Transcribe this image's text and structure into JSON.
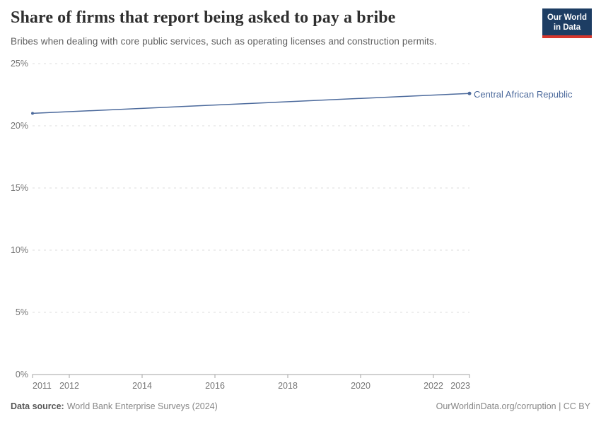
{
  "header": {
    "title": "Share of firms that report being asked to pay a bribe",
    "subtitle": "Bribes when dealing with core public services, such as operating licenses and construction permits.",
    "logo": {
      "line1": "Our World",
      "line2": "in Data"
    }
  },
  "chart_data": {
    "type": "line",
    "title": "Share of firms that report being asked to pay a bribe",
    "xlabel": "",
    "ylabel": "",
    "unit": "%",
    "xlim": [
      2011,
      2023
    ],
    "ylim": [
      0,
      25
    ],
    "x_ticks": [
      "2011",
      "2012",
      "2014",
      "2016",
      "2018",
      "2020",
      "2022",
      "2023"
    ],
    "y_ticks": [
      "25%",
      "20%",
      "15%",
      "10%",
      "5%",
      "0%"
    ],
    "grid": "horizontal-dashed",
    "legend": "line-end-label",
    "series": [
      {
        "name": "Central African Republic",
        "color": "#4c6a9c",
        "points": [
          {
            "x": 2011,
            "y": 21.0
          },
          {
            "x": 2023,
            "y": 22.6
          }
        ]
      }
    ]
  },
  "footer": {
    "source_label": "Data source:",
    "source_text": "World Bank Enterprise Surveys (2024)",
    "credit": "OurWorldinData.org/corruption | CC BY"
  },
  "colors": {
    "logo_navy": "#1d3d63",
    "logo_red": "#d7362c",
    "series_blue": "#4c6a9c",
    "grid_gray": "#dcdcdc",
    "axis_gray": "#a3a3a3"
  }
}
